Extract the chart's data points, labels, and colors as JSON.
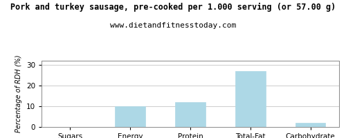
{
  "title": "Pork and turkey sausage, pre-cooked per 1.000 serving (or 57.00 g)",
  "subtitle": "www.dietandfitnesstoday.com",
  "categories": [
    "Sugars",
    "Energy",
    "Protein",
    "Total-Fat",
    "Carbohydrate"
  ],
  "values": [
    0,
    10,
    12,
    27,
    2
  ],
  "bar_color": "#add8e6",
  "bar_edge_color": "#add8e6",
  "ylabel": "Percentage of RDH (%)",
  "ylim": [
    0,
    32
  ],
  "yticks": [
    0,
    10,
    20,
    30
  ],
  "background_color": "#ffffff",
  "title_fontsize": 8.5,
  "subtitle_fontsize": 8,
  "ylabel_fontsize": 7,
  "tick_fontsize": 7.5,
  "grid_color": "#cccccc",
  "spine_color": "#888888"
}
